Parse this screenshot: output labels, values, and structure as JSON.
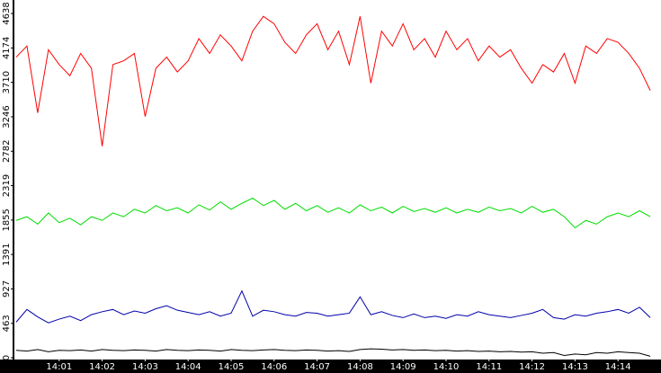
{
  "chart_data": {
    "type": "line",
    "x": [
      0,
      0.25,
      0.5,
      0.75,
      1,
      1.25,
      1.5,
      1.75,
      2,
      2.25,
      2.5,
      2.75,
      3,
      3.25,
      3.5,
      3.75,
      4,
      4.25,
      4.5,
      4.75,
      5,
      5.25,
      5.5,
      5.75,
      6,
      6.25,
      6.5,
      6.75,
      7,
      7.25,
      7.5,
      7.75,
      8,
      8.25,
      8.5,
      8.75,
      9,
      9.25,
      9.5,
      9.75,
      10,
      10.25,
      10.5,
      10.75,
      11,
      11.25,
      11.5,
      11.75,
      12,
      12.25,
      12.5,
      12.75,
      13,
      13.25,
      13.5,
      13.75,
      14,
      14.25,
      14.5,
      14.75
    ],
    "series": [
      {
        "color": "#ff0000",
        "values": [
          4050,
          4200,
          3300,
          4150,
          3950,
          3800,
          4100,
          3900,
          2850,
          3950,
          4000,
          4100,
          3250,
          3900,
          4050,
          3850,
          4000,
          4300,
          4100,
          4350,
          4200,
          4000,
          4400,
          4600,
          4500,
          4250,
          4100,
          4350,
          4500,
          4150,
          4400,
          3950,
          4600,
          3700,
          4400,
          4200,
          4500,
          4150,
          4300,
          4050,
          4400,
          4150,
          4300,
          4000,
          4200,
          4050,
          4150,
          3900,
          3700,
          3950,
          3850,
          4100,
          3700,
          4200,
          4100,
          4300,
          4250,
          4100,
          3900,
          3600
        ]
      },
      {
        "color": "#00dd00",
        "values": [
          1850,
          1900,
          1800,
          1950,
          1820,
          1880,
          1790,
          1900,
          1850,
          1950,
          1900,
          2000,
          1950,
          2050,
          1980,
          2020,
          1950,
          2060,
          1990,
          2100,
          2000,
          2080,
          2150,
          2050,
          2120,
          2000,
          2080,
          1980,
          2050,
          1960,
          2020,
          1950,
          2060,
          1980,
          2030,
          1950,
          2040,
          1970,
          2010,
          1960,
          2020,
          1950,
          2000,
          1960,
          2030,
          1980,
          2010,
          1950,
          2040,
          1960,
          2000,
          1900,
          1750,
          1850,
          1800,
          1900,
          1950,
          1900,
          1980,
          1900
        ]
      },
      {
        "color": "#0000aa",
        "values": [
          480,
          650,
          550,
          470,
          520,
          560,
          500,
          580,
          620,
          650,
          580,
          630,
          600,
          660,
          700,
          640,
          610,
          580,
          620,
          560,
          600,
          900,
          560,
          640,
          620,
          580,
          560,
          610,
          600,
          560,
          580,
          600,
          820,
          580,
          620,
          570,
          540,
          590,
          540,
          560,
          530,
          580,
          560,
          620,
          580,
          560,
          540,
          570,
          600,
          650,
          540,
          520,
          580,
          560,
          600,
          620,
          650,
          600,
          680,
          540
        ]
      },
      {
        "color": "#000000",
        "values": [
          100,
          90,
          110,
          80,
          100,
          95,
          105,
          90,
          110,
          100,
          95,
          105,
          100,
          90,
          110,
          100,
          95,
          105,
          100,
          90,
          110,
          100,
          95,
          105,
          110,
          100,
          95,
          105,
          100,
          90,
          95,
          85,
          110,
          120,
          115,
          105,
          110,
          100,
          105,
          95,
          100,
          90,
          95,
          85,
          90,
          80,
          85,
          75,
          80,
          60,
          70,
          30,
          50,
          40,
          70,
          60,
          80,
          70,
          60,
          20
        ]
      }
    ],
    "xlim": [
      0,
      15
    ],
    "xticks": [
      {
        "value": 1,
        "label": "14:01"
      },
      {
        "value": 2,
        "label": "14:02"
      },
      {
        "value": 3,
        "label": "14:03"
      },
      {
        "value": 4,
        "label": "14:04"
      },
      {
        "value": 5,
        "label": "14:05"
      },
      {
        "value": 6,
        "label": "14:06"
      },
      {
        "value": 7,
        "label": "14:07"
      },
      {
        "value": 8,
        "label": "14:08"
      },
      {
        "value": 9,
        "label": "14:09"
      },
      {
        "value": 10,
        "label": "14:10"
      },
      {
        "value": 11,
        "label": "14:11"
      },
      {
        "value": 12,
        "label": "14:12"
      },
      {
        "value": 13,
        "label": "14:13"
      },
      {
        "value": 14,
        "label": "14:14"
      }
    ],
    "ylim": [
      0,
      4820
    ],
    "yticks": [
      0,
      463,
      927,
      1391,
      1855,
      2319,
      2782,
      3246,
      3710,
      4174,
      4638
    ]
  }
}
